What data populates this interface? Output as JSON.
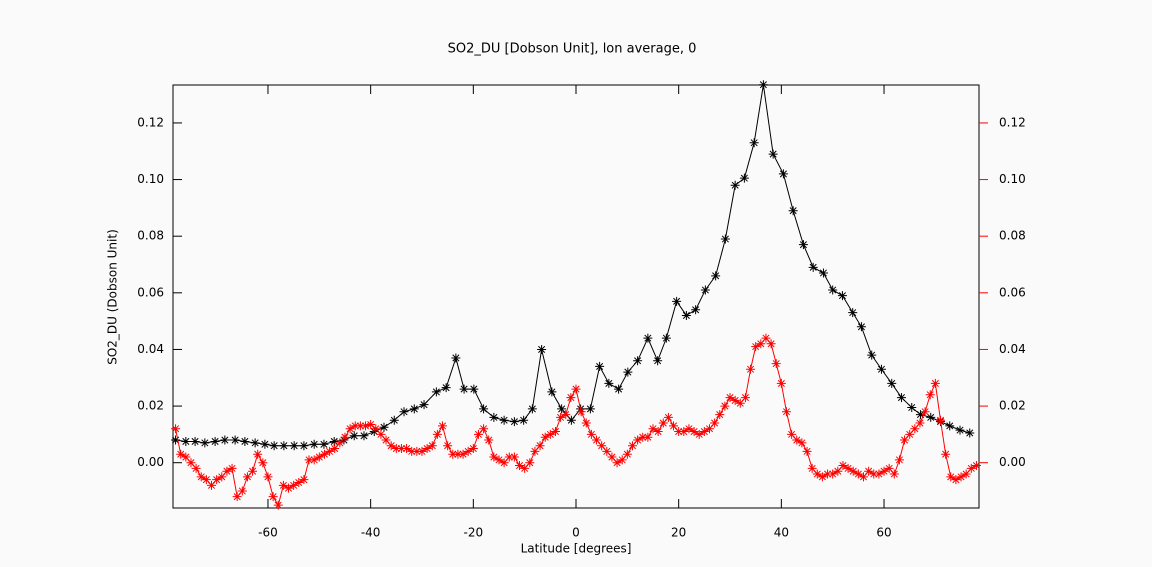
{
  "chart_data": {
    "type": "line",
    "title": "SO2_DU [Dobson Unit], lon average, 0",
    "x_label": "Latitude [degrees]",
    "y_label": "SO2_DU (Dobson Unit)",
    "xlim": [
      -78.5,
      78.5
    ],
    "xticks": [
      -60,
      -40,
      -20,
      0,
      20,
      40,
      60
    ],
    "ylim": [
      -0.016,
      0.1334
    ],
    "yticks": [
      {
        "value": 0,
        "label": "0.00"
      },
      {
        "value": 0.02,
        "label": "0.02"
      },
      {
        "value": 0.04,
        "label": "0.04"
      },
      {
        "value": 0.06,
        "label": "0.06"
      },
      {
        "value": 0.08,
        "label": "0.08"
      },
      {
        "value": 0.1,
        "label": "0.10"
      },
      {
        "value": 0.12,
        "label": "0.12"
      }
    ],
    "y2lim": [
      -0.016,
      0.1334
    ],
    "y2ticks": [
      {
        "value": 0,
        "label": "0.00"
      },
      {
        "value": 0.02,
        "label": "0.02"
      },
      {
        "value": 0.04,
        "label": "0.04"
      },
      {
        "value": 0.06,
        "label": "0.06"
      },
      {
        "value": 0.08,
        "label": "0.08"
      },
      {
        "value": 0.1,
        "label": "0.10"
      },
      {
        "value": 0.12,
        "label": "0.12"
      }
    ],
    "y2_color": "#ff0000",
    "series": [
      {
        "color": "#000000",
        "x": [
          -78,
          -76,
          -74.2,
          -72.3,
          -70.3,
          -68.4,
          -66.4,
          -64.5,
          -62.5,
          -60.6,
          -58.8,
          -56.9,
          -54.9,
          -53,
          -51,
          -49.1,
          -47.1,
          -45.2,
          -43.2,
          -41.3,
          -39.3,
          -37.4,
          -35.4,
          -33.5,
          -31.5,
          -29.6,
          -27.2,
          -25.3,
          -23.4,
          -21.8,
          -19.9,
          -18,
          -16,
          -14,
          -12,
          -10.2,
          -8.5,
          -6.7,
          -4.7,
          -2.8,
          -0.9,
          0.9,
          2.8,
          4.6,
          6.4,
          8.3,
          10.1,
          12,
          14,
          15.9,
          17.6,
          19.6,
          21.5,
          23.3,
          25.2,
          27.2,
          29.1,
          31,
          32.8,
          34.7,
          36.5,
          38.4,
          40.4,
          42.3,
          44.3,
          46.2,
          48.2,
          50,
          51.9,
          53.9,
          55.6,
          57.6,
          59.5,
          61.5,
          63.4,
          65.4,
          67.1,
          69.1,
          71,
          72.8,
          74.8,
          76.7
        ],
        "values": [
          0.008,
          0.0075,
          0.0075,
          0.007,
          0.0075,
          0.008,
          0.008,
          0.0075,
          0.007,
          0.0065,
          0.006,
          0.006,
          0.006,
          0.006,
          0.0065,
          0.0065,
          0.0075,
          0.008,
          0.0095,
          0.0095,
          0.011,
          0.0125,
          0.015,
          0.018,
          0.019,
          0.0205,
          0.025,
          0.0265,
          0.037,
          0.026,
          0.026,
          0.019,
          0.016,
          0.015,
          0.0145,
          0.015,
          0.019,
          0.04,
          0.025,
          0.019,
          0.015,
          0.019,
          0.019,
          0.034,
          0.028,
          0.026,
          0.032,
          0.036,
          0.044,
          0.036,
          0.044,
          0.057,
          0.052,
          0.054,
          0.061,
          0.066,
          0.079,
          0.098,
          0.1005,
          0.113,
          0.1335,
          0.109,
          0.102,
          0.089,
          0.077,
          0.069,
          0.067,
          0.061,
          0.059,
          0.053,
          0.048,
          0.038,
          0.033,
          0.028,
          0.023,
          0.0195,
          0.017,
          0.016,
          0.0145,
          0.013,
          0.0115,
          0.0105
        ]
      },
      {
        "color": "#ff0000",
        "axis": "y2",
        "x": [
          -78,
          -77,
          -76,
          -75,
          -74,
          -73,
          -72,
          -71,
          -70,
          -69,
          -68,
          -67,
          -66,
          -65,
          -64,
          -63,
          -62,
          -61,
          -60,
          -59,
          -58,
          -57,
          -56,
          -55,
          -54,
          -53,
          -52,
          -51,
          -50,
          -49,
          -48,
          -47,
          -46,
          -45,
          -44,
          -43,
          -42,
          -41,
          -40,
          -39,
          -38,
          -37,
          -36,
          -35,
          -34,
          -33,
          -32,
          -31,
          -30,
          -29,
          -28,
          -27,
          -26,
          -25,
          -24,
          -23,
          -22,
          -21,
          -20,
          -19,
          -18,
          -17,
          -16,
          -15,
          -14,
          -13,
          -12,
          -11,
          -10,
          -9,
          -8,
          -7,
          -6,
          -5,
          -4,
          -3,
          -2,
          -1,
          0,
          1,
          2,
          3,
          4,
          5,
          6,
          7,
          8,
          9,
          10,
          11,
          12,
          13,
          14,
          15,
          16,
          17,
          18,
          19,
          20,
          21,
          22,
          23,
          24,
          25,
          26,
          27,
          28,
          29,
          30,
          31,
          32,
          33,
          34,
          35,
          36,
          37,
          38,
          39,
          40,
          41,
          42,
          43,
          44,
          45,
          46,
          47,
          48,
          49,
          50,
          51,
          52,
          53,
          54,
          55,
          56,
          57,
          58,
          59,
          60,
          61,
          62,
          63,
          64,
          65,
          66,
          67,
          68,
          69,
          70,
          71,
          72,
          73,
          74,
          75,
          76,
          77,
          78
        ],
        "values": [
          0.012,
          0.003,
          0.002,
          0,
          -0.002,
          -0.005,
          -0.006,
          -0.008,
          -0.006,
          -0.005,
          -0.003,
          -0.002,
          -0.012,
          -0.01,
          -0.005,
          -0.003,
          0.003,
          0,
          -0.005,
          -0.012,
          -0.015,
          -0.008,
          -0.009,
          -0.008,
          -0.007,
          -0.006,
          0.001,
          0.001,
          0.002,
          0.003,
          0.004,
          0.005,
          0.007,
          0.009,
          0.012,
          0.013,
          0.013,
          0.013,
          0.0135,
          0.012,
          0.01,
          0.008,
          0.006,
          0.005,
          0.005,
          0.005,
          0.004,
          0.004,
          0.004,
          0.005,
          0.006,
          0.01,
          0.013,
          0.006,
          0.003,
          0.003,
          0.003,
          0.004,
          0.005,
          0.01,
          0.012,
          0.008,
          0.002,
          0.001,
          0,
          0.002,
          0.002,
          -0.001,
          -0.002,
          0,
          0.004,
          0.006,
          0.009,
          0.01,
          0.011,
          0.016,
          0.017,
          0.023,
          0.026,
          0.018,
          0.014,
          0.01,
          0.008,
          0.006,
          0.004,
          0.002,
          0,
          0.001,
          0.003,
          0.006,
          0.008,
          0.009,
          0.009,
          0.012,
          0.011,
          0.014,
          0.016,
          0.013,
          0.011,
          0.011,
          0.012,
          0.011,
          0.01,
          0.011,
          0.012,
          0.014,
          0.017,
          0.02,
          0.023,
          0.022,
          0.021,
          0.023,
          0.033,
          0.041,
          0.042,
          0.044,
          0.042,
          0.035,
          0.028,
          0.018,
          0.01,
          0.008,
          0.007,
          0.004,
          -0.002,
          -0.004,
          -0.005,
          -0.004,
          -0.004,
          -0.003,
          -0.001,
          -0.002,
          -0.003,
          -0.004,
          -0.005,
          -0.003,
          -0.004,
          -0.004,
          -0.003,
          -0.002,
          -0.004,
          0.001,
          0.008,
          0.01,
          0.012,
          0.014,
          0.018,
          0.024,
          0.028,
          0.015,
          0.003,
          -0.005,
          -0.006,
          -0.005,
          -0.004,
          -0.002,
          -0.001
        ]
      }
    ]
  }
}
